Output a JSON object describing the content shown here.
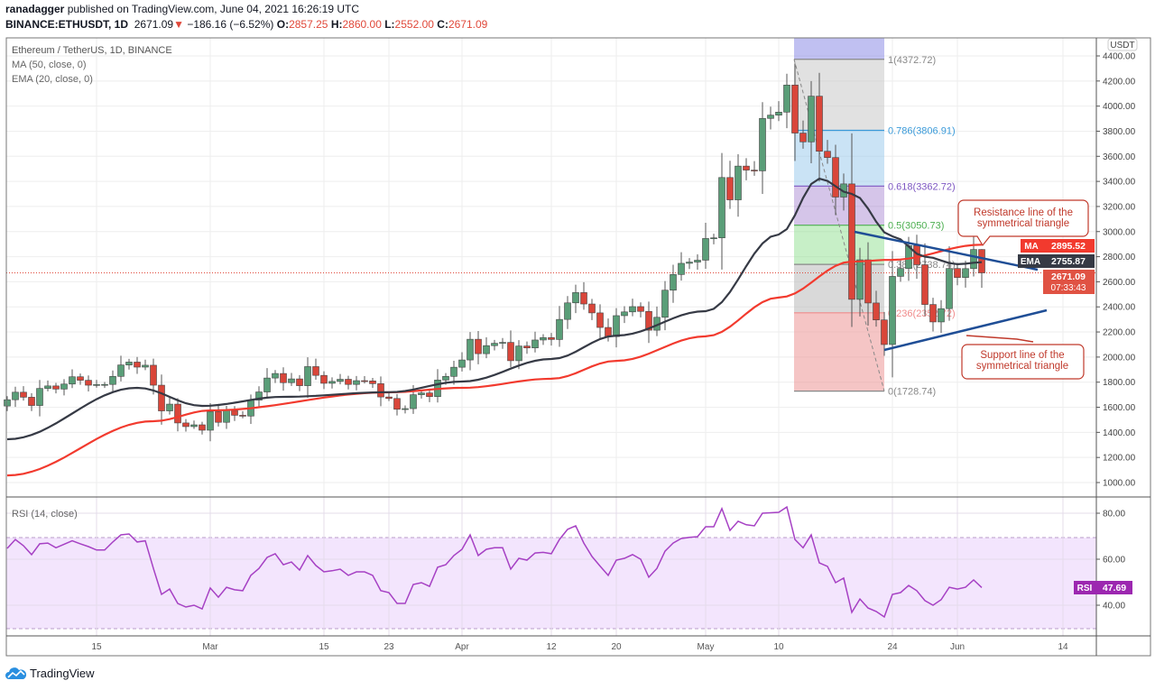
{
  "header": {
    "publisher": "ranadagger",
    "published_text": "published on TradingView.com, June 04, 2021 16:26:19 UTC",
    "symbol": "BINANCE:ETHUSDT, 1D",
    "last": "2671.09",
    "change": "−186.16 (−6.52%)",
    "o_label": "O:",
    "o": "2857.25",
    "h_label": "H:",
    "h": "2860.00",
    "l_label": "L:",
    "l": "2552.00",
    "c_label": "C:",
    "c": "2671.09"
  },
  "legend": {
    "title": "Ethereum / TetherUS, 1D, BINANCE",
    "ma": "MA (50, close, 0)",
    "ema": "EMA (20, close, 0)",
    "rsi": "RSI (14, close)"
  },
  "price_axis": {
    "currency": "USDT",
    "labels": [
      "1000.00",
      "1200.00",
      "1400.00",
      "1600.00",
      "1800.00",
      "2000.00",
      "2200.00",
      "2400.00",
      "2600.00",
      "2800.00",
      "3000.00",
      "3200.00",
      "3400.00",
      "3600.00",
      "3800.00",
      "4000.00",
      "4200.00",
      "4400.00"
    ],
    "ma_badge": {
      "label": "MA",
      "value": "2895.52"
    },
    "ema_badge": {
      "label": "EMA",
      "value": "2755.87"
    },
    "price_badge": {
      "value": "2671.09",
      "countdown": "07:33:43"
    }
  },
  "rsi_axis": {
    "labels": [
      "80.00",
      "60.00",
      "40.00"
    ],
    "badge": {
      "label": "RSI",
      "value": "47.69"
    }
  },
  "time_axis": {
    "labels": [
      {
        "text": "15",
        "date": "2021-02-15"
      },
      {
        "text": "Mar",
        "date": "2021-03-01"
      },
      {
        "text": "15",
        "date": "2021-03-15"
      },
      {
        "text": "23",
        "date": "2021-03-23"
      },
      {
        "text": "Apr",
        "date": "2021-04-01"
      },
      {
        "text": "12",
        "date": "2021-04-12"
      },
      {
        "text": "20",
        "date": "2021-04-20"
      },
      {
        "text": "May",
        "date": "2021-05-01"
      },
      {
        "text": "10",
        "date": "2021-05-10"
      },
      {
        "text": "24",
        "date": "2021-05-24"
      },
      {
        "text": "Jun",
        "date": "2021-06-01"
      },
      {
        "text": "14",
        "date": "2021-06-14"
      }
    ]
  },
  "annotations": {
    "resistance": "Resistance line of the symmetrical triangle",
    "resistance_l1": "Resistance line of the",
    "resistance_l2": "symmetrical triangle",
    "support_l1": "Support line of the",
    "support_l2": "symmetrical triangle",
    "fib_labels": [
      "1(4372.72)",
      "0.786(3806.91)",
      "0.618(3362.72)",
      "0.5(3050.73)",
      "0.382(2738.74)",
      "0.236(2352.72)",
      "0(1728.74)"
    ]
  },
  "footer": {
    "brand": "TradingView"
  },
  "colors": {
    "up": "#5a9e78",
    "down": "#d9463a",
    "ma": "#f23a2e",
    "ema": "#363a45",
    "rsi": "#9c27b0",
    "trend": "#1f4e96"
  },
  "chart_data": {
    "type": "candlestick",
    "title": "Ethereum / TetherUS, 1D, BINANCE",
    "start_date": "2021-02-04",
    "end_date": "2021-06-04",
    "interval": "1D",
    "ylim": [
      900,
      4500
    ],
    "close": [
      1660,
      1720,
      1680,
      1614,
      1750,
      1770,
      1745,
      1785,
      1843,
      1815,
      1776,
      1781,
      1782,
      1846,
      1937,
      1960,
      1920,
      1935,
      1776,
      1571,
      1625,
      1475,
      1446,
      1460,
      1417,
      1565,
      1480,
      1574,
      1536,
      1530,
      1657,
      1722,
      1833,
      1869,
      1796,
      1826,
      1772,
      1924,
      1854,
      1791,
      1806,
      1823,
      1782,
      1812,
      1810,
      1788,
      1682,
      1670,
      1584,
      1589,
      1700,
      1714,
      1685,
      1817,
      1846,
      1919,
      1977,
      2142,
      2027,
      2091,
      2110,
      2117,
      1971,
      2088,
      2073,
      2136,
      2155,
      2140,
      2300,
      2432,
      2514,
      2423,
      2352,
      2236,
      2163,
      2330,
      2360,
      2402,
      2364,
      2214,
      2317,
      2533,
      2658,
      2747,
      2757,
      2772,
      2945,
      2950,
      3431,
      3253,
      3522,
      3490,
      3484,
      3902,
      3928,
      3952,
      4168,
      3785,
      3715,
      4079,
      3640,
      3590,
      3275,
      3380,
      2460,
      2775,
      2431,
      2296,
      2100,
      2643,
      2706,
      2888,
      2736,
      2419,
      2280,
      2386,
      2706,
      2634,
      2705,
      2857.25,
      2671.09
    ],
    "last_candle": {
      "open": 2857.25,
      "high": 2860.0,
      "low": 2552.0,
      "close": 2671.09
    },
    "ma50": [
      [
        0,
        1057
      ],
      [
        18,
        1489
      ],
      [
        25,
        1575
      ],
      [
        47,
        1719
      ],
      [
        56,
        1755
      ],
      [
        67,
        1827
      ],
      [
        75,
        1970
      ],
      [
        86,
        2165
      ],
      [
        95,
        2474
      ],
      [
        104,
        2761
      ],
      [
        109,
        2775
      ],
      [
        120,
        2895.52
      ]
    ],
    "ema20": [
      [
        0,
        1345
      ],
      [
        16,
        1755
      ],
      [
        24,
        1611
      ],
      [
        34,
        1683
      ],
      [
        47,
        1720
      ],
      [
        56,
        1805
      ],
      [
        67,
        1985
      ],
      [
        75,
        2171
      ],
      [
        86,
        2366
      ],
      [
        95,
        2977
      ],
      [
        100,
        3422
      ],
      [
        104,
        3300
      ],
      [
        109,
        2962
      ],
      [
        113,
        2800
      ],
      [
        117,
        2740
      ],
      [
        120,
        2755.87
      ]
    ],
    "rsi": {
      "ylim": [
        25,
        88
      ],
      "overbought": 70,
      "oversold": 30,
      "values": [
        64.7,
        68.6,
        65.9,
        62,
        66.7,
        67,
        65,
        66.5,
        68,
        66.7,
        65.5,
        64,
        64,
        67.5,
        70.6,
        71,
        67.5,
        68,
        56,
        44.7,
        47,
        40.8,
        39.2,
        40,
        38.4,
        47.5,
        43.5,
        47.8,
        46.7,
        46.3,
        53,
        56,
        60.8,
        62.4,
        57.6,
        58.8,
        55.3,
        61.6,
        57.3,
        54.5,
        55,
        55.7,
        53,
        54.5,
        54.5,
        53,
        46.3,
        45.5,
        40.8,
        40.8,
        49,
        49.8,
        48.2,
        56.5,
        57.6,
        61.6,
        64.3,
        70.6,
        61.6,
        64.3,
        65,
        65,
        55.7,
        60.4,
        59.6,
        62.7,
        63,
        62.4,
        68.6,
        73,
        74.5,
        67,
        61.2,
        57,
        53,
        59.6,
        60.4,
        62,
        60,
        52.2,
        56,
        63.5,
        67,
        69,
        69.5,
        69.8,
        74.1,
        74.1,
        82,
        72.5,
        76.5,
        75,
        74.5,
        80,
        80.2,
        80.4,
        82.7,
        68.6,
        65,
        70.6,
        58.4,
        56.9,
        49.8,
        51.8,
        36.9,
        42.7,
        38.8,
        37.3,
        34.9,
        44.7,
        45.5,
        48.6,
        46.3,
        42,
        40,
        42.4,
        47.8,
        47,
        47.8,
        51,
        47.69
      ]
    },
    "fibonacci": {
      "from_date": "2021-05-12",
      "to_date": "2021-05-23",
      "levels": [
        {
          "ratio": 1,
          "price": 4372.72
        },
        {
          "ratio": 0.786,
          "price": 3806.91
        },
        {
          "ratio": 0.618,
          "price": 3362.72
        },
        {
          "ratio": 0.5,
          "price": 3050.73
        },
        {
          "ratio": 0.382,
          "price": 2738.74
        },
        {
          "ratio": 0.236,
          "price": 2352.72
        },
        {
          "ratio": 0,
          "price": 1728.74
        }
      ]
    },
    "trendlines": [
      {
        "name": "resistance",
        "from": [
          104,
          3010
        ],
        "to": [
          127,
          2710
        ]
      },
      {
        "name": "support",
        "from": [
          108,
          2060
        ],
        "to": [
          128,
          2375
        ]
      }
    ]
  }
}
